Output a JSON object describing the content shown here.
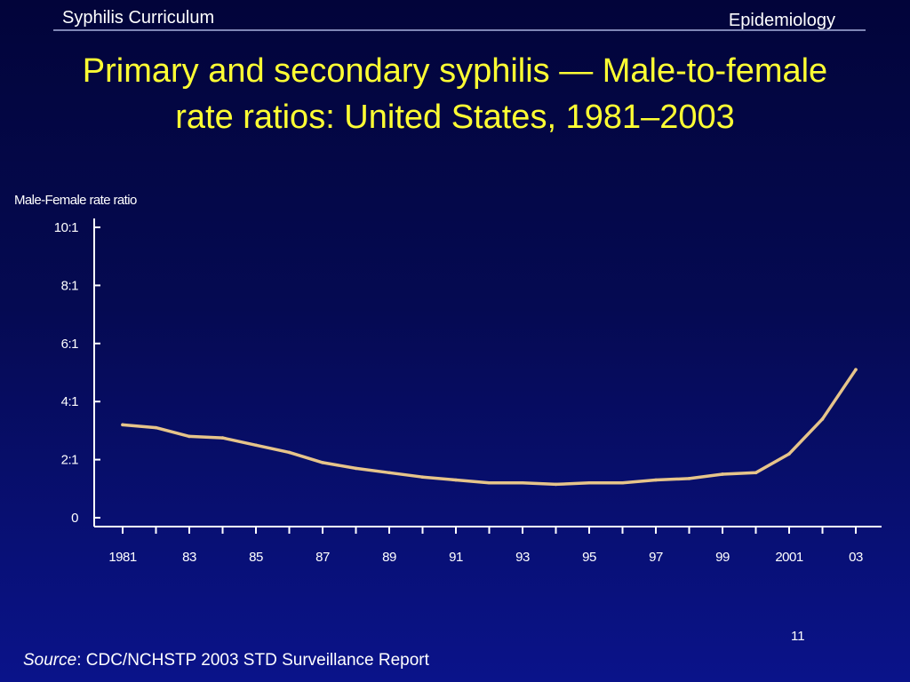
{
  "header": {
    "left": "Syphilis Curriculum",
    "right": "Epidemiology"
  },
  "colors": {
    "title": "#ffff33",
    "series_line": "#e6c48a",
    "axis": "#ffffff",
    "background": "#050a52"
  },
  "chart_data": {
    "type": "line",
    "title": "Primary and secondary syphilis — Male-to-female rate ratios: United States, 1981–2003",
    "ylabel": "Male-Female rate ratio",
    "xlabel": "",
    "ylim": [
      0,
      10
    ],
    "xlim": [
      1981,
      2003
    ],
    "y_ticks": [
      {
        "value": 0,
        "label": "0"
      },
      {
        "value": 2,
        "label": "2:1"
      },
      {
        "value": 4,
        "label": "4:1"
      },
      {
        "value": 6,
        "label": "6:1"
      },
      {
        "value": 8,
        "label": "8:1"
      },
      {
        "value": 10,
        "label": "10:1"
      }
    ],
    "x_ticks": [
      {
        "value": 1981,
        "label": "1981"
      },
      {
        "value": 1983,
        "label": "83"
      },
      {
        "value": 1985,
        "label": "85"
      },
      {
        "value": 1987,
        "label": "87"
      },
      {
        "value": 1989,
        "label": "89"
      },
      {
        "value": 1991,
        "label": "91"
      },
      {
        "value": 1993,
        "label": "93"
      },
      {
        "value": 1995,
        "label": "95"
      },
      {
        "value": 1997,
        "label": "97"
      },
      {
        "value": 1999,
        "label": "99"
      },
      {
        "value": 2001,
        "label": "2001"
      },
      {
        "value": 2003,
        "label": "03"
      }
    ],
    "grid": false,
    "legend": "none",
    "series": [
      {
        "x": [
          1981,
          1982,
          1983,
          1984,
          1985,
          1986,
          1987,
          1988,
          1989,
          1990,
          1991,
          1992,
          1993,
          1994,
          1995,
          1996,
          1997,
          1998,
          1999,
          2000,
          2001,
          2002,
          2003
        ],
        "values": [
          3.2,
          3.1,
          2.8,
          2.75,
          2.5,
          2.25,
          1.9,
          1.7,
          1.55,
          1.4,
          1.3,
          1.2,
          1.2,
          1.15,
          1.2,
          1.2,
          1.3,
          1.35,
          1.5,
          1.55,
          2.2,
          3.4,
          5.1
        ]
      }
    ]
  },
  "footer": {
    "page_number": "11",
    "source_label": "Source",
    "source_text": ": CDC/NCHSTP 2003 STD Surveillance Report"
  }
}
